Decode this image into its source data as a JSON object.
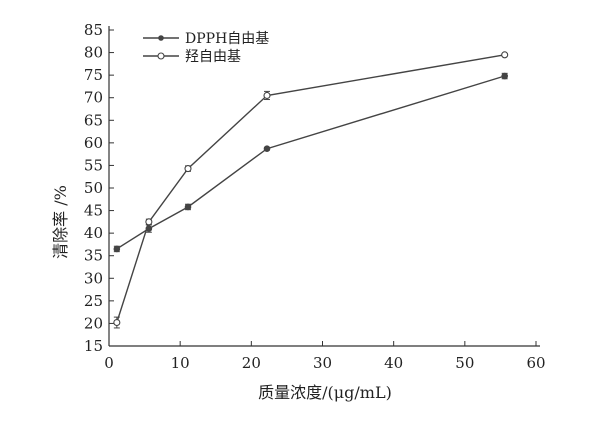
{
  "chart_data": {
    "type": "line",
    "xlabel": "质量浓度/(μg/mL)",
    "ylabel": "清除率 /%",
    "xlim": [
      0,
      60
    ],
    "ylim": [
      15,
      85
    ],
    "xticks": [
      0,
      10,
      20,
      30,
      40,
      50,
      60
    ],
    "yticks": [
      15,
      20,
      25,
      30,
      35,
      40,
      45,
      50,
      55,
      60,
      65,
      70,
      75,
      80,
      85
    ],
    "grid": false,
    "legend_position": "top-left",
    "series": [
      {
        "name": "DPPH自由基",
        "marker": "filled-circle",
        "x": [
          1.1,
          5.6,
          11.1,
          22.2,
          55.6
        ],
        "y": [
          36.5,
          41.0,
          45.8,
          58.7,
          74.8
        ],
        "err": [
          0.6,
          0.8,
          0.6,
          0.3,
          0.6
        ]
      },
      {
        "name": "羟自由基",
        "marker": "open-circle",
        "x": [
          1.1,
          5.6,
          11.1,
          22.2,
          55.6
        ],
        "y": [
          20.2,
          42.5,
          54.3,
          70.5,
          79.5
        ],
        "err": [
          1.2,
          0.6,
          0.6,
          0.9,
          0.3
        ]
      }
    ],
    "colors": {
      "line": "#444444",
      "axis": "#333333"
    }
  }
}
